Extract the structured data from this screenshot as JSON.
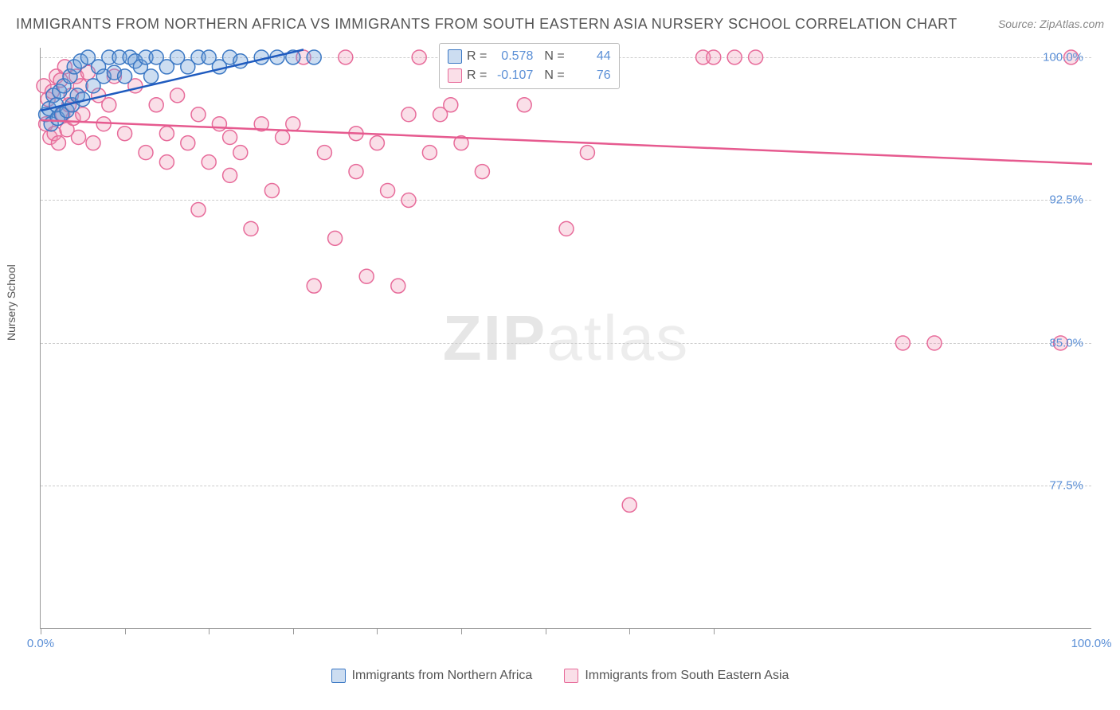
{
  "title": "IMMIGRANTS FROM NORTHERN AFRICA VS IMMIGRANTS FROM SOUTH EASTERN ASIA NURSERY SCHOOL CORRELATION CHART",
  "source_label": "Source: ZipAtlas.com",
  "ylabel": "Nursery School",
  "watermark_bold": "ZIP",
  "watermark_rest": "atlas",
  "colors": {
    "blue_stroke": "#3b78c4",
    "blue_fill": "rgba(109,158,214,0.35)",
    "blue_trend": "#1f5bbf",
    "pink_stroke": "#e76b9a",
    "pink_fill": "rgba(240,150,180,0.30)",
    "pink_trend": "#e65a8f",
    "axis_text": "#5b8fd6",
    "grid": "#cccccc"
  },
  "chart": {
    "type": "scatter",
    "xlim": [
      0,
      100
    ],
    "ylim": [
      70,
      100.5
    ],
    "ytick_step": 7.5,
    "yticks": [
      77.5,
      85.0,
      92.5,
      100.0
    ],
    "ytick_labels": [
      "77.5%",
      "85.0%",
      "92.5%",
      "100.0%"
    ],
    "xlabel_0": "0.0%",
    "xlabel_100": "100.0%",
    "xtick_positions": [
      0,
      8,
      16,
      24,
      32,
      40,
      48,
      56,
      64
    ],
    "marker_radius": 9,
    "marker_stroke_width": 1.5,
    "trend_line_width": 2.5
  },
  "series_blue": {
    "name": "Immigrants from Northern Africa",
    "R": "0.578",
    "N": "44",
    "trend": {
      "x1": 0,
      "y1": 97.2,
      "x2": 25,
      "y2": 100.4
    },
    "points": [
      [
        0.5,
        97.0
      ],
      [
        0.8,
        97.3
      ],
      [
        1.0,
        96.5
      ],
      [
        1.2,
        98.0
      ],
      [
        1.5,
        97.5
      ],
      [
        1.6,
        96.8
      ],
      [
        1.8,
        98.2
      ],
      [
        2.0,
        97.0
      ],
      [
        2.2,
        98.5
      ],
      [
        2.5,
        97.2
      ],
      [
        2.8,
        99.0
      ],
      [
        3.0,
        97.5
      ],
      [
        3.2,
        99.5
      ],
      [
        3.5,
        98.0
      ],
      [
        3.8,
        99.8
      ],
      [
        4.0,
        97.8
      ],
      [
        4.5,
        100.0
      ],
      [
        5.0,
        98.5
      ],
      [
        5.5,
        99.5
      ],
      [
        6.0,
        99.0
      ],
      [
        6.5,
        100.0
      ],
      [
        7.0,
        99.2
      ],
      [
        7.5,
        100.0
      ],
      [
        8.0,
        99.0
      ],
      [
        8.5,
        100.0
      ],
      [
        9.0,
        99.8
      ],
      [
        9.5,
        99.5
      ],
      [
        10.0,
        100.0
      ],
      [
        10.5,
        99.0
      ],
      [
        11.0,
        100.0
      ],
      [
        12.0,
        99.5
      ],
      [
        13.0,
        100.0
      ],
      [
        14.0,
        99.5
      ],
      [
        15.0,
        100.0
      ],
      [
        16.0,
        100.0
      ],
      [
        17.0,
        99.5
      ],
      [
        18.0,
        100.0
      ],
      [
        19.0,
        99.8
      ],
      [
        21.0,
        100.0
      ],
      [
        22.5,
        100.0
      ],
      [
        24.0,
        100.0
      ],
      [
        26.0,
        100.0
      ],
      [
        40.0,
        100.0
      ],
      [
        43.0,
        100.0
      ]
    ]
  },
  "series_pink": {
    "name": "Immigrants from South Eastern Asia",
    "R": "-0.107",
    "N": "76",
    "trend": {
      "x1": 0,
      "y1": 96.7,
      "x2": 100,
      "y2": 94.4
    },
    "points": [
      [
        0.3,
        98.5
      ],
      [
        0.5,
        96.5
      ],
      [
        0.7,
        97.8
      ],
      [
        0.9,
        95.8
      ],
      [
        1.1,
        98.2
      ],
      [
        1.3,
        96.0
      ],
      [
        1.5,
        99.0
      ],
      [
        1.7,
        95.5
      ],
      [
        1.9,
        98.8
      ],
      [
        2.1,
        97.0
      ],
      [
        2.3,
        99.5
      ],
      [
        2.5,
        96.2
      ],
      [
        2.7,
        97.5
      ],
      [
        2.9,
        98.0
      ],
      [
        3.1,
        96.8
      ],
      [
        3.4,
        99.0
      ],
      [
        3.6,
        95.8
      ],
      [
        3.8,
        98.5
      ],
      [
        4.0,
        97.0
      ],
      [
        4.5,
        99.2
      ],
      [
        5.0,
        95.5
      ],
      [
        5.5,
        98.0
      ],
      [
        6.0,
        96.5
      ],
      [
        6.5,
        97.5
      ],
      [
        7.0,
        99.0
      ],
      [
        8.0,
        96.0
      ],
      [
        9.0,
        98.5
      ],
      [
        10.0,
        95.0
      ],
      [
        11.0,
        97.5
      ],
      [
        12.0,
        96.0
      ],
      [
        13.0,
        98.0
      ],
      [
        14.0,
        95.5
      ],
      [
        15.0,
        97.0
      ],
      [
        16.0,
        94.5
      ],
      [
        17.0,
        96.5
      ],
      [
        18.0,
        93.8
      ],
      [
        19.0,
        95.0
      ],
      [
        20.0,
        91.0
      ],
      [
        21.0,
        96.5
      ],
      [
        22.0,
        93.0
      ],
      [
        23.0,
        95.8
      ],
      [
        24.0,
        96.5
      ],
      [
        25.0,
        100.0
      ],
      [
        26.0,
        88.0
      ],
      [
        27.0,
        95.0
      ],
      [
        28.0,
        90.5
      ],
      [
        29.0,
        100.0
      ],
      [
        30.0,
        96.0
      ],
      [
        31.0,
        88.5
      ],
      [
        32.0,
        95.5
      ],
      [
        33.0,
        93.0
      ],
      [
        34.0,
        88.0
      ],
      [
        35.0,
        97.0
      ],
      [
        36.0,
        100.0
      ],
      [
        37.0,
        95.0
      ],
      [
        39.0,
        97.5
      ],
      [
        40.0,
        95.5
      ],
      [
        42.0,
        94.0
      ],
      [
        46.0,
        97.5
      ],
      [
        50.0,
        91.0
      ],
      [
        52.0,
        95.0
      ],
      [
        56.0,
        76.5
      ],
      [
        63.0,
        100.0
      ],
      [
        66.0,
        100.0
      ],
      [
        68.0,
        100.0
      ],
      [
        82.0,
        85.0
      ],
      [
        85.0,
        85.0
      ],
      [
        97.0,
        85.0
      ],
      [
        98.0,
        100.0
      ],
      [
        64.0,
        100.0
      ],
      [
        15.0,
        92.0
      ],
      [
        18.0,
        95.8
      ],
      [
        35.0,
        92.5
      ],
      [
        30.0,
        94.0
      ],
      [
        12.0,
        94.5
      ],
      [
        38.0,
        97.0
      ]
    ]
  }
}
